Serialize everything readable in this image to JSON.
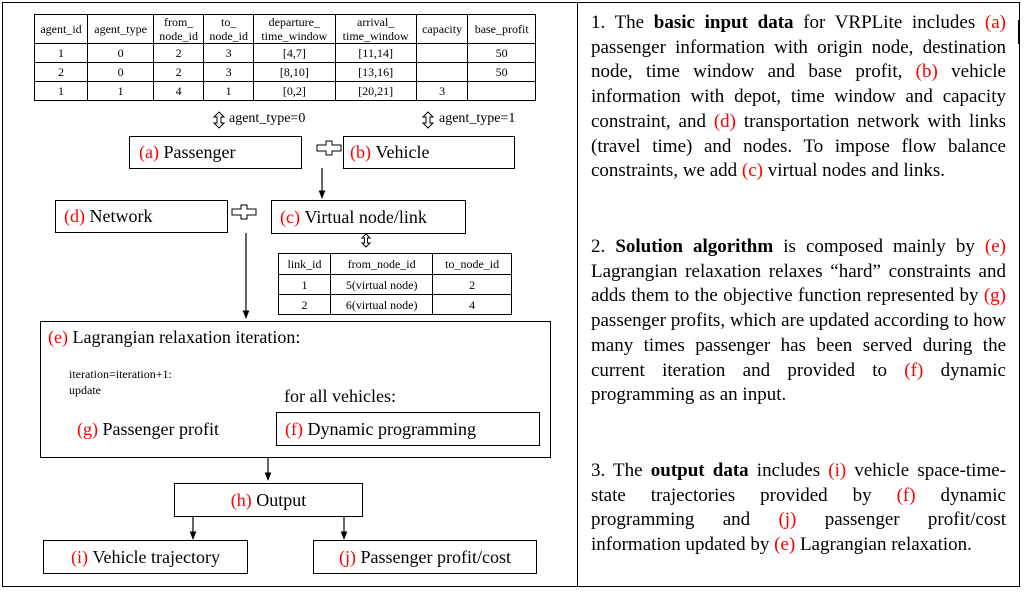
{
  "input_table": {
    "headers": [
      [
        "agent_id"
      ],
      [
        "agent_type"
      ],
      [
        "from_",
        "node_id"
      ],
      [
        "to_",
        "node_id"
      ],
      [
        "departure_",
        "time_window"
      ],
      [
        "arrival_",
        "time_window"
      ],
      [
        "capacity"
      ],
      [
        "base_profit"
      ]
    ],
    "rows": [
      [
        "1",
        "0",
        "2",
        "3",
        "[4,7]",
        "[11,14]",
        "",
        "50"
      ],
      [
        "2",
        "0",
        "2",
        "3",
        "[8,10]",
        "[13,16]",
        "",
        "50"
      ],
      [
        "1",
        "1",
        "4",
        "1",
        "[0,2]",
        "[20,21]",
        "3",
        ""
      ]
    ]
  },
  "link_table": {
    "headers": [
      "link_id",
      "from_node_id",
      "to_node_id"
    ],
    "rows": [
      [
        "1",
        "5(virtual node)",
        "2"
      ],
      [
        "2",
        "6(virtual node)",
        "4"
      ]
    ]
  },
  "diagram": {
    "agent_type_0": "agent_type=0",
    "agent_type_1": "agent_type=1",
    "passenger": {
      "tag": "(a)",
      "text": "Passenger"
    },
    "vehicle": {
      "tag": "(b)",
      "text": "Vehicle"
    },
    "network": {
      "tag": "(d)",
      "text": "Network"
    },
    "virtual": {
      "tag": "(c)",
      "text": "Virtual node/link"
    },
    "lagrangian": {
      "tag": "(e)",
      "text": "Lagrangian relaxation iteration:"
    },
    "iteration_line1": "iteration=iteration+1:",
    "iteration_line2": "update",
    "for_all": "for all vehicles:",
    "profit": {
      "tag": "(g)",
      "text": "Passenger profit"
    },
    "dp": {
      "tag": "(f)",
      "text": "Dynamic programming"
    },
    "output": {
      "tag": "(h)",
      "text": "Output"
    },
    "trajectory": {
      "tag": "(i)",
      "text": "Vehicle trajectory"
    },
    "profit_cost": {
      "tag": "(j)",
      "text": "Passenger profit/cost"
    }
  },
  "text": {
    "p1": [
      {
        "t": "1. The "
      },
      {
        "t": "basic input data",
        "b": true
      },
      {
        "t": " for VRPLite includes "
      },
      {
        "t": "(a)",
        "r": true
      },
      {
        "t": " passenger information with origin node, destination node, time window and base profit, "
      },
      {
        "t": "(b)",
        "r": true
      },
      {
        "t": " vehicle information with depot, time window and capacity constraint,  and "
      },
      {
        "t": "(d)",
        "r": true
      },
      {
        "t": " transportation network with links (travel time) and nodes. To impose flow balance constraints, we add "
      },
      {
        "t": "(c)",
        "r": true
      },
      {
        "t": " virtual nodes and links."
      }
    ],
    "p2": [
      {
        "t": "2. "
      },
      {
        "t": "Solution algorithm",
        "b": true
      },
      {
        "t": " is composed mainly by "
      },
      {
        "t": "(e)",
        "r": true
      },
      {
        "t": " Lagrangian relaxation relaxes “hard” constraints and adds them to the objective function represented by "
      },
      {
        "t": "(g)",
        "r": true
      },
      {
        "t": " passenger profits, which are updated according to how many times passenger has been served during the current iteration and provided to "
      },
      {
        "t": "(f)",
        "r": true
      },
      {
        "t": " dynamic programming as an input."
      }
    ],
    "p3": [
      {
        "t": "3. The "
      },
      {
        "t": "output data",
        "b": true
      },
      {
        "t": " includes "
      },
      {
        "t": "(i)",
        "r": true
      },
      {
        "t": " vehicle space-time-state trajectories provided by "
      },
      {
        "t": "(f)",
        "r": true
      },
      {
        "t": " dynamic programming and "
      },
      {
        "t": "(j)",
        "r": true
      },
      {
        "t": " passenger profit/cost information updated by "
      },
      {
        "t": "(e)",
        "r": true
      },
      {
        "t": " Lagrangian relaxation."
      }
    ]
  }
}
